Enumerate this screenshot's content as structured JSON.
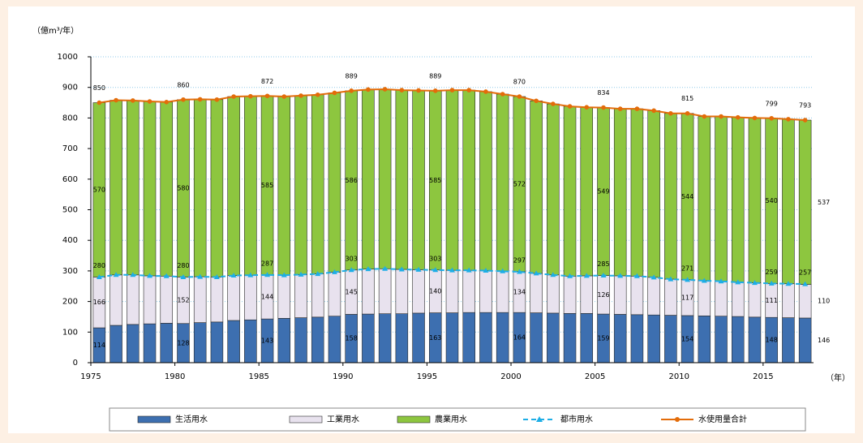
{
  "chart_data": {
    "type": "bar",
    "stacked": true,
    "y_unit_label": "（億m³/年）",
    "x_unit_label": "（年）",
    "categories": [
      1975,
      null,
      null,
      null,
      null,
      1980,
      null,
      null,
      null,
      null,
      1985,
      null,
      null,
      null,
      null,
      1990,
      null,
      null,
      null,
      null,
      1995,
      null,
      null,
      null,
      null,
      2000,
      null,
      null,
      null,
      null,
      2005,
      null,
      null,
      null,
      null,
      2010,
      null,
      null,
      null,
      null,
      2015,
      null,
      null
    ],
    "ylim": [
      0,
      1000
    ],
    "yticks": [
      0,
      100,
      200,
      300,
      400,
      500,
      600,
      700,
      800,
      900,
      1000
    ],
    "grid": true,
    "series": [
      {
        "name": "生活用水",
        "type": "bar",
        "color": "#3d6fb0",
        "values": [
          114,
          122,
          125,
          127,
          129,
          128,
          131,
          133,
          138,
          140,
          143,
          145,
          147,
          149,
          152,
          158,
          159,
          160,
          160,
          162,
          163,
          163,
          164,
          164,
          164,
          164,
          163,
          162,
          161,
          161,
          159,
          158,
          157,
          156,
          155,
          154,
          153,
          152,
          151,
          149,
          148,
          147,
          146
        ],
        "value_labels": [
          114,
          null,
          null,
          null,
          null,
          128,
          null,
          null,
          null,
          null,
          143,
          null,
          null,
          null,
          null,
          158,
          null,
          null,
          null,
          null,
          163,
          null,
          null,
          null,
          null,
          164,
          null,
          null,
          null,
          null,
          159,
          null,
          null,
          null,
          null,
          154,
          null,
          null,
          null,
          null,
          148,
          null,
          146
        ]
      },
      {
        "name": "工業用水",
        "type": "bar",
        "color": "#e8e2ee",
        "values": [
          166,
          165,
          162,
          157,
          154,
          152,
          150,
          147,
          147,
          146,
          144,
          141,
          141,
          141,
          144,
          145,
          147,
          147,
          145,
          142,
          140,
          139,
          138,
          137,
          135,
          134,
          129,
          125,
          122,
          123,
          126,
          126,
          126,
          123,
          118,
          117,
          115,
          114,
          112,
          112,
          111,
          111,
          110
        ],
        "value_labels": [
          166,
          null,
          null,
          null,
          null,
          152,
          null,
          null,
          null,
          null,
          144,
          null,
          null,
          null,
          null,
          145,
          null,
          null,
          null,
          null,
          140,
          null,
          null,
          null,
          null,
          134,
          null,
          null,
          null,
          null,
          126,
          null,
          null,
          null,
          null,
          117,
          null,
          null,
          null,
          null,
          111,
          null,
          110
        ]
      },
      {
        "name": "農業用水",
        "type": "bar",
        "color": "#8dc63f",
        "values": [
          570,
          571,
          570,
          570,
          569,
          580,
          580,
          580,
          585,
          585,
          585,
          584,
          585,
          586,
          586,
          586,
          587,
          587,
          586,
          586,
          585,
          589,
          589,
          585,
          579,
          572,
          564,
          559,
          555,
          551,
          549,
          546,
          547,
          545,
          542,
          544,
          537,
          539,
          539,
          539,
          540,
          538,
          537
        ],
        "value_labels": [
          570,
          null,
          null,
          null,
          null,
          580,
          null,
          null,
          null,
          null,
          585,
          null,
          null,
          null,
          null,
          586,
          null,
          null,
          null,
          null,
          585,
          null,
          null,
          null,
          null,
          572,
          null,
          null,
          null,
          null,
          549,
          null,
          null,
          null,
          null,
          544,
          null,
          null,
          null,
          null,
          540,
          null,
          537
        ]
      },
      {
        "name": "都市用水",
        "type": "line",
        "dashed": true,
        "marker": "triangle",
        "color": "#1eaee6",
        "values": [
          280,
          287,
          287,
          284,
          283,
          280,
          281,
          280,
          285,
          286,
          287,
          286,
          288,
          290,
          296,
          303,
          306,
          307,
          305,
          304,
          303,
          302,
          302,
          301,
          299,
          297,
          292,
          287,
          283,
          284,
          285,
          284,
          283,
          279,
          273,
          271,
          268,
          266,
          263,
          261,
          259,
          258,
          257
        ],
        "value_labels": [
          280,
          null,
          null,
          null,
          null,
          280,
          null,
          null,
          null,
          null,
          287,
          null,
          null,
          null,
          null,
          303,
          null,
          null,
          null,
          null,
          303,
          null,
          null,
          null,
          null,
          297,
          null,
          null,
          null,
          null,
          285,
          null,
          null,
          null,
          null,
          271,
          null,
          null,
          null,
          null,
          259,
          null,
          257
        ]
      },
      {
        "name": "水使用量合計",
        "type": "line",
        "marker": "circle",
        "color": "#e36c0a",
        "values": [
          850,
          858,
          857,
          854,
          852,
          860,
          861,
          860,
          870,
          871,
          872,
          870,
          873,
          876,
          882,
          889,
          893,
          894,
          891,
          890,
          889,
          891,
          891,
          886,
          878,
          870,
          856,
          846,
          838,
          835,
          834,
          830,
          830,
          824,
          815,
          815,
          805,
          805,
          802,
          800,
          799,
          796,
          793
        ],
        "value_labels": [
          850,
          null,
          null,
          null,
          null,
          860,
          null,
          null,
          null,
          null,
          872,
          null,
          null,
          null,
          null,
          889,
          null,
          null,
          null,
          null,
          889,
          null,
          null,
          null,
          null,
          870,
          null,
          null,
          null,
          null,
          834,
          null,
          null,
          null,
          null,
          815,
          null,
          null,
          null,
          null,
          799,
          null,
          793
        ]
      }
    ]
  }
}
